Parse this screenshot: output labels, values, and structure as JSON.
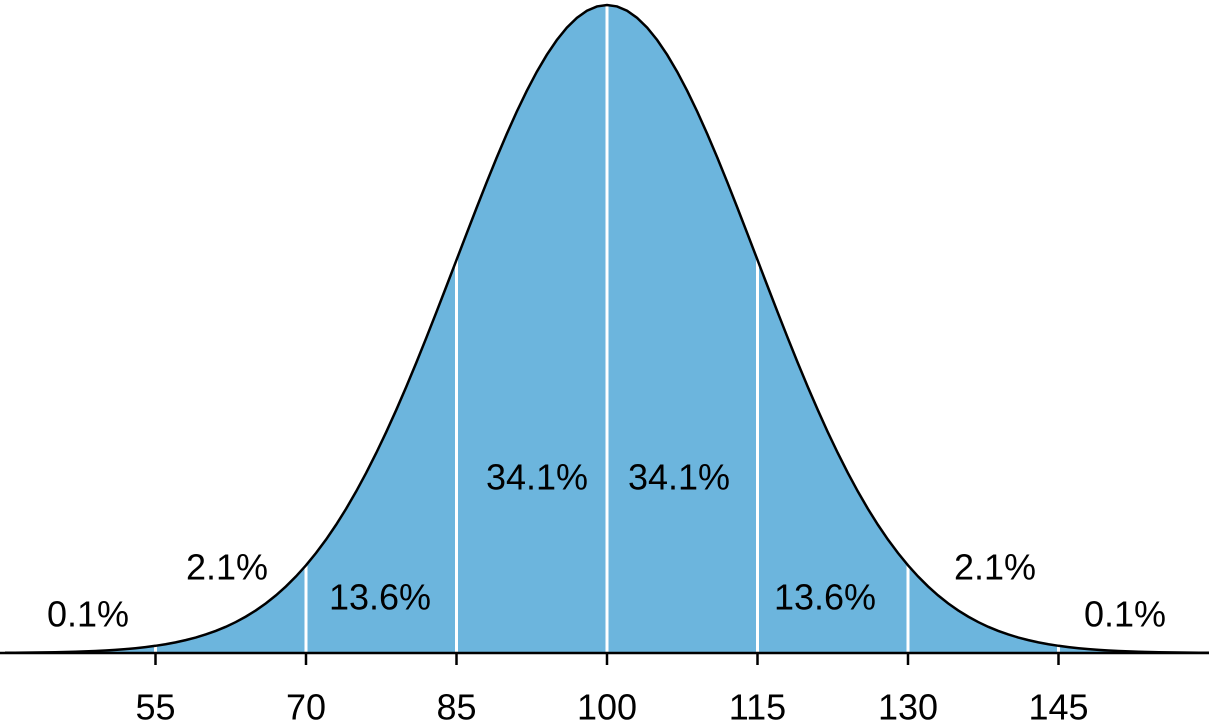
{
  "chart_data": {
    "type": "normal",
    "xlim": [
      40,
      160
    ],
    "xticks": [
      55,
      70,
      85,
      100,
      115,
      130,
      145
    ],
    "regions": {
      "values": [
        0.1,
        2.1,
        13.6,
        34.1,
        34.1,
        13.6,
        2.1,
        0.1
      ],
      "value_labels": [
        "0.1%",
        "2.1%",
        "13.6%",
        "34.1%",
        "34.1%",
        "13.6%",
        "2.1%",
        "0.1%"
      ]
    },
    "color": "#6cb5dd"
  }
}
